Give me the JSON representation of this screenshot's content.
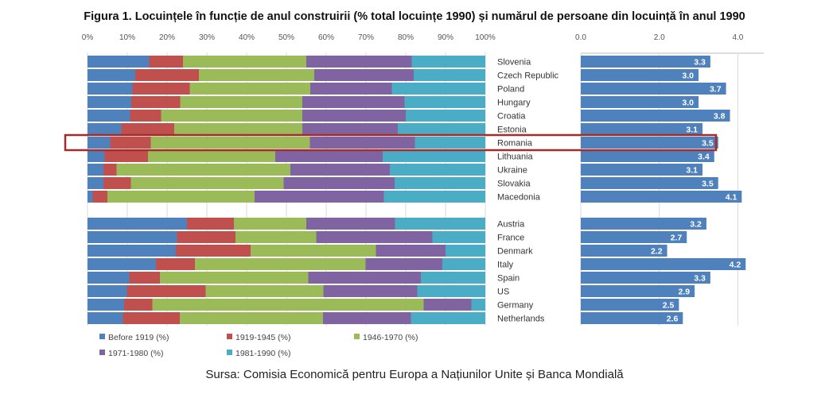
{
  "title": "Figura 1. Locuințele în funcție de anul construirii (% total locuințe 1990) și numărul de persoane din locuință în anul 1990",
  "source": "Sursa: Comisia Economică pentru Europa a Națiunilor Unite și Banca Mondială",
  "highlighted_category": "Romania",
  "highlight_color": "#a52a2a",
  "chart_data": [
    {
      "type": "bar",
      "orientation": "horizontal",
      "stacked": true,
      "xlim": [
        0,
        100
      ],
      "x_ticks": [
        "0%",
        "10%",
        "20%",
        "30%",
        "40%",
        "50%",
        "60%",
        "70%",
        "80%",
        "90%",
        "100%"
      ],
      "grid": true,
      "legend_position": "bottom",
      "categories": [
        "Slovenia",
        "Czech Republic",
        "Poland",
        "Hungary",
        "Croatia",
        "Estonia",
        "Romania",
        "Lithuania",
        "Ukraine",
        "Slovakia",
        "Macedonia",
        "Austria",
        "France",
        "Denmark",
        "Italy",
        "Spain",
        "US",
        "Germany",
        "Netherlands"
      ],
      "series": [
        {
          "name": "Before 1919 (%)",
          "color": "#4f81bd",
          "values": [
            15.5,
            12,
            11.3,
            11,
            10.7,
            8.5,
            5.7,
            4.3,
            4,
            4,
            1.3,
            25,
            22.5,
            22.2,
            17.2,
            10.5,
            9.9,
            9.2,
            8.9
          ]
        },
        {
          "name": "1919-1945 (%)",
          "color": "#c0504d",
          "values": [
            8.5,
            16,
            14.4,
            12.3,
            7.8,
            13.3,
            10.2,
            10.9,
            3.3,
            6.9,
            3.7,
            11.8,
            14.7,
            18.8,
            9.8,
            7.7,
            19.8,
            7.1,
            14.3
          ]
        },
        {
          "name": "1946-1970 (%)",
          "color": "#9bbb59",
          "values": [
            31,
            29,
            30.3,
            30.7,
            35.5,
            32.2,
            40,
            32,
            43.7,
            38.4,
            37,
            18.2,
            20.3,
            31.5,
            42.9,
            37.3,
            29.6,
            68.2,
            36
          ]
        },
        {
          "name": "1971-1980 (%)",
          "color": "#8064a2",
          "values": [
            26.5,
            25,
            20.5,
            25.7,
            26,
            24,
            26.4,
            27,
            25,
            27.9,
            32.5,
            22.3,
            29.2,
            17.5,
            19.3,
            28.3,
            23.6,
            12,
            22.1
          ]
        },
        {
          "name": "1981-1990 (%)",
          "color": "#4bacc6",
          "values": [
            18.5,
            18,
            23.5,
            20.3,
            20,
            22,
            17.7,
            25.8,
            24,
            22.8,
            25.5,
            22.7,
            13.3,
            10,
            10.8,
            16.2,
            17.1,
            3.5,
            18.7
          ]
        }
      ]
    },
    {
      "type": "bar",
      "orientation": "horizontal",
      "xlim": [
        0,
        4.6
      ],
      "x_ticks": [
        "0.0",
        "2.0",
        "4.0"
      ],
      "grid": true,
      "color": "#4f81bd",
      "categories": [
        "Slovenia",
        "Czech Republic",
        "Poland",
        "Hungary",
        "Croatia",
        "Estonia",
        "Romania",
        "Lithuania",
        "Ukraine",
        "Slovakia",
        "Macedonia",
        "Austria",
        "France",
        "Denmark",
        "Italy",
        "Spain",
        "US",
        "Germany",
        "Netherlands"
      ],
      "values": [
        3.3,
        3.0,
        3.7,
        3.0,
        3.8,
        3.1,
        3.5,
        3.4,
        3.1,
        3.5,
        4.1,
        3.2,
        2.7,
        2.2,
        4.2,
        3.3,
        2.9,
        2.5,
        2.6
      ],
      "labels": [
        "3.3",
        "3.0",
        "3.7",
        "3.0",
        "3.8",
        "3.1",
        "3.5",
        "3.4",
        "3.1",
        "3.5",
        "4.1",
        "3.2",
        "2.7",
        "2.2",
        "4.2",
        "3.3",
        "2.9",
        "2.5",
        "2.6"
      ]
    }
  ]
}
